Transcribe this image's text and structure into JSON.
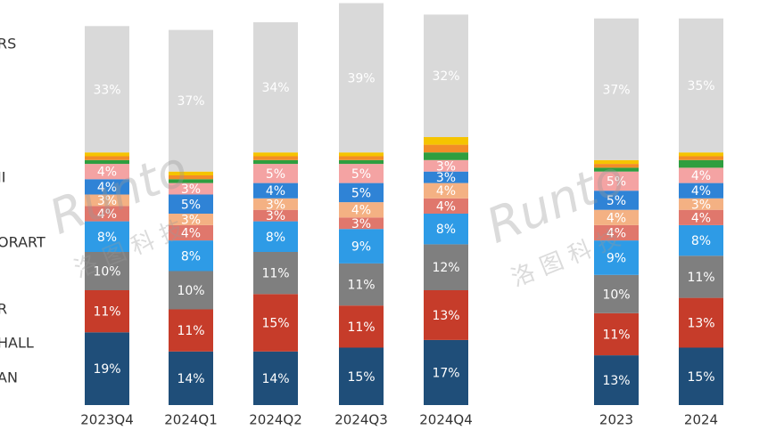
{
  "chart_data": {
    "type": "stacked_bar",
    "watermark": "Runto",
    "watermark_sub": "洛 图 科 技",
    "categories": [
      "2023Q4",
      "2024Q1",
      "2024Q2",
      "2024Q3",
      "2024Q4",
      "2023",
      "2024"
    ],
    "series": [
      {
        "name": "AN",
        "color": "#1f4e79",
        "values": [
          19,
          14,
          14,
          15,
          17,
          13,
          15
        ],
        "value_labels": [
          "19%",
          "14%",
          "14%",
          "15%",
          "17%",
          "13%",
          "15%"
        ]
      },
      {
        "name": "HALL",
        "color": "#c63c2a",
        "values": [
          11,
          11,
          15,
          11,
          13,
          11,
          13
        ],
        "value_labels": [
          "11%",
          "11%",
          "15%",
          "11%",
          "13%",
          "11%",
          "13%"
        ]
      },
      {
        "name": "R",
        "color": "#7f7f7f",
        "values": [
          10,
          10,
          11,
          11,
          12,
          10,
          11
        ],
        "value_labels": [
          "10%",
          "10%",
          "11%",
          "11%",
          "12%",
          "10%",
          "11%"
        ]
      },
      {
        "name": "ORART",
        "color": "#2e9be6",
        "values": [
          8,
          8,
          8,
          9,
          8,
          9,
          8
        ],
        "value_labels": [
          "8%",
          "8%",
          "8%",
          "9%",
          "8%",
          "9%",
          "8%"
        ]
      },
      {
        "color": "#e0776c",
        "values": [
          4,
          4,
          3,
          3,
          4,
          4,
          4
        ],
        "value_labels": [
          "4%",
          "4%",
          "3%",
          "3%",
          "4%",
          "4%",
          "4%"
        ]
      },
      {
        "color": "#f4b183",
        "values": [
          3,
          3,
          3,
          4,
          4,
          4,
          3
        ],
        "value_labels": [
          "3%",
          "3%",
          "3%",
          "4%",
          "4%",
          "4%",
          "3%"
        ]
      },
      {
        "name": "JI",
        "color": "#2f83d6",
        "values": [
          4,
          5,
          4,
          5,
          3,
          5,
          4
        ],
        "value_labels": [
          "4%",
          "5%",
          "4%",
          "5%",
          "3%",
          "5%",
          "4%"
        ]
      },
      {
        "color": "#f4a3a3",
        "values": [
          4,
          3,
          5,
          5,
          3,
          5,
          4
        ],
        "value_labels": [
          "4%",
          "3%",
          "5%",
          "5%",
          "3%",
          "5%",
          "4%"
        ]
      },
      {
        "color": "#2e9e3f",
        "values": [
          1,
          1,
          1,
          1,
          2,
          1,
          2
        ]
      },
      {
        "color": "#f28c28",
        "values": [
          1,
          1,
          1,
          1,
          2,
          1,
          1
        ]
      },
      {
        "color": "#f5c400",
        "values": [
          1,
          1,
          1,
          1,
          2,
          1,
          1
        ]
      },
      {
        "name": "RS",
        "color": "#d9d9d9",
        "values": [
          33,
          37,
          34,
          39,
          32,
          37,
          35
        ],
        "value_labels": [
          "33%",
          "37%",
          "34%",
          "39%",
          "32%",
          "37%",
          "35%"
        ]
      }
    ]
  }
}
